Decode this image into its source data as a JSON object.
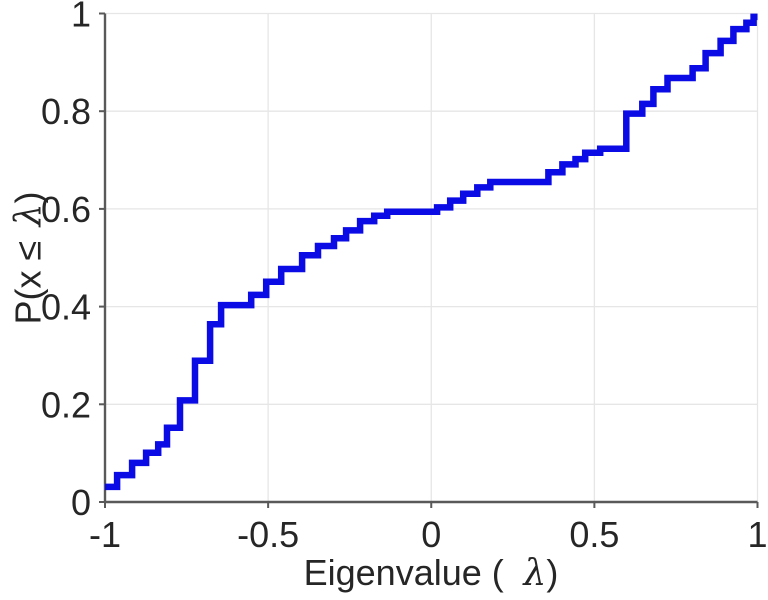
{
  "figure": {
    "background": "#ffffff",
    "title": ""
  },
  "chart_data": {
    "type": "line",
    "subtype": "empirical-cdf-staircase",
    "title": "",
    "xlabel": "Eigenvalue (  λ)",
    "ylabel": "P(x ≤ λ)",
    "xlabel_parts": {
      "prefix": "Eigenvalue (",
      "lambda": "λ",
      "suffix": ")"
    },
    "ylabel_parts": {
      "prefix": "P(x ≤ ",
      "lambda": "λ",
      "suffix": ")"
    },
    "xlim": [
      -1,
      1
    ],
    "ylim": [
      0,
      1
    ],
    "xticks": [
      -1,
      -0.5,
      0,
      0.5,
      1
    ],
    "xtick_labels": [
      "-1",
      "-0.5",
      "0",
      "0.5",
      "1"
    ],
    "yticks": [
      0,
      0.2,
      0.4,
      0.6,
      0.8,
      1
    ],
    "ytick_labels": [
      "0",
      "0.2",
      "0.4",
      "0.6",
      "0.8",
      "1"
    ],
    "grid": true,
    "legend": null,
    "line_color": "#0b0be6",
    "line_width": 6.5,
    "axis_color": "#595959",
    "grid_color": "#e6e6e6",
    "label_color": "#262626",
    "steps": [
      [
        -1.0,
        0.031
      ],
      [
        -0.963,
        0.055
      ],
      [
        -0.917,
        0.08
      ],
      [
        -0.874,
        0.101
      ],
      [
        -0.837,
        0.118
      ],
      [
        -0.81,
        0.152
      ],
      [
        -0.77,
        0.208
      ],
      [
        -0.724,
        0.289
      ],
      [
        -0.678,
        0.364
      ],
      [
        -0.644,
        0.403
      ],
      [
        -0.552,
        0.424
      ],
      [
        -0.506,
        0.451
      ],
      [
        -0.46,
        0.477
      ],
      [
        -0.396,
        0.505
      ],
      [
        -0.347,
        0.524
      ],
      [
        -0.298,
        0.54
      ],
      [
        -0.261,
        0.556
      ],
      [
        -0.218,
        0.575
      ],
      [
        -0.175,
        0.586
      ],
      [
        -0.135,
        0.594
      ],
      [
        0.018,
        0.603
      ],
      [
        0.058,
        0.617
      ],
      [
        0.098,
        0.631
      ],
      [
        0.141,
        0.644
      ],
      [
        0.181,
        0.655
      ],
      [
        0.359,
        0.675
      ],
      [
        0.402,
        0.691
      ],
      [
        0.442,
        0.702
      ],
      [
        0.472,
        0.715
      ],
      [
        0.518,
        0.723
      ],
      [
        0.598,
        0.795
      ],
      [
        0.647,
        0.815
      ],
      [
        0.681,
        0.845
      ],
      [
        0.724,
        0.868
      ],
      [
        0.801,
        0.888
      ],
      [
        0.841,
        0.919
      ],
      [
        0.887,
        0.944
      ],
      [
        0.926,
        0.968
      ],
      [
        0.966,
        0.981
      ],
      [
        0.988,
        0.993
      ],
      [
        1.0,
        0.993
      ]
    ]
  }
}
